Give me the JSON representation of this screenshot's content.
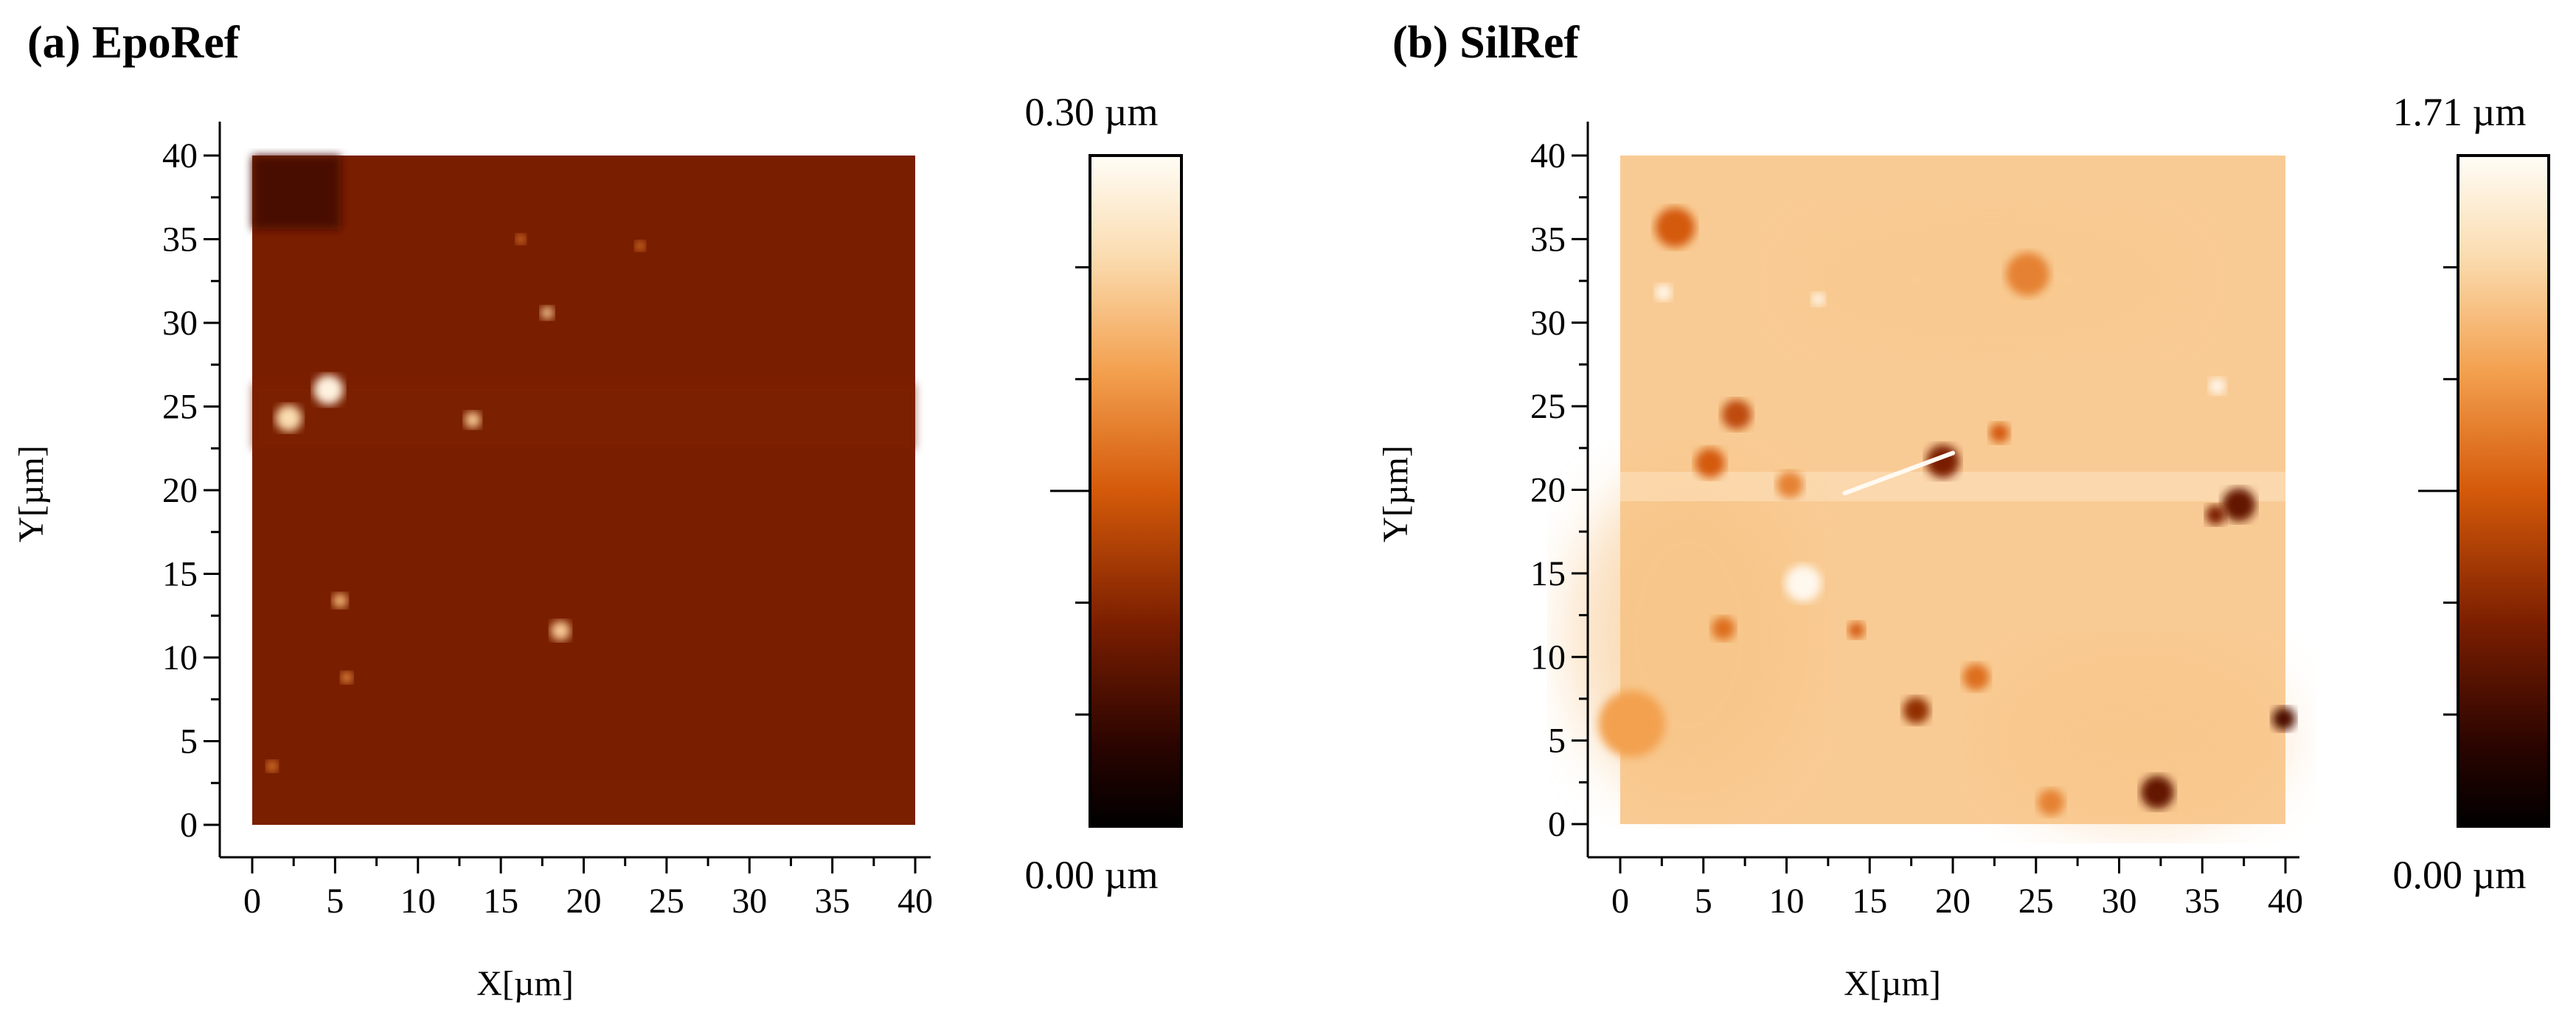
{
  "chart_data": [
    {
      "id": "a",
      "type": "heatmap",
      "title": "(a) EpoRef",
      "xlabel": "X[µm]",
      "ylabel": "Y[µm]",
      "xlim": [
        0,
        40
      ],
      "ylim": [
        0,
        40
      ],
      "x_ticks": [
        "0",
        "5",
        "10",
        "15",
        "20",
        "25",
        "30",
        "35",
        "40"
      ],
      "y_ticks": [
        "0",
        "5",
        "10",
        "15",
        "20",
        "25",
        "30",
        "35",
        "40"
      ],
      "colorbar": {
        "min": 0.0,
        "max": 0.3,
        "unit": "µm",
        "min_label": "0.00 µm",
        "max_label": "0.30 µm"
      },
      "surface": {
        "base_level_fraction": 0.3,
        "description_colors": [
          "#000000",
          "#4a0f00",
          "#a33400",
          "#e8761a",
          "#f7c98a",
          "#fffdf6"
        ]
      },
      "features": [
        {
          "x": 4.6,
          "y": 26.0,
          "r": 0.9,
          "level": 0.95
        },
        {
          "x": 2.2,
          "y": 24.3,
          "r": 0.8,
          "level": 0.85
        },
        {
          "x": 13.3,
          "y": 24.2,
          "r": 0.5,
          "level": 0.8
        },
        {
          "x": 17.8,
          "y": 30.6,
          "r": 0.4,
          "level": 0.8
        },
        {
          "x": 18.6,
          "y": 11.6,
          "r": 0.6,
          "level": 0.8
        },
        {
          "x": 5.3,
          "y": 13.4,
          "r": 0.45,
          "level": 0.75
        },
        {
          "x": 5.7,
          "y": 8.8,
          "r": 0.35,
          "level": 0.65
        },
        {
          "x": 1.2,
          "y": 3.5,
          "r": 0.35,
          "level": 0.6
        },
        {
          "x": 16.2,
          "y": 35.0,
          "r": 0.3,
          "level": 0.6
        },
        {
          "x": 23.4,
          "y": 34.6,
          "r": 0.3,
          "level": 0.6
        }
      ]
    },
    {
      "id": "b",
      "type": "heatmap",
      "title": "(b) SilRef",
      "xlabel": "X[µm]",
      "ylabel": "Y[µm]",
      "xlim": [
        0,
        40
      ],
      "ylim": [
        0,
        40
      ],
      "x_ticks": [
        "0",
        "5",
        "10",
        "15",
        "20",
        "25",
        "30",
        "35",
        "40"
      ],
      "y_ticks": [
        "0",
        "5",
        "10",
        "15",
        "20",
        "25",
        "30",
        "35",
        "40"
      ],
      "colorbar": {
        "min": 0.0,
        "max": 1.71,
        "unit": "µm",
        "min_label": "0.00 µm",
        "max_label": "1.71 µm"
      },
      "surface": {
        "base_level_fraction": 0.8,
        "description_colors": [
          "#000000",
          "#4a0f00",
          "#a33400",
          "#e8761a",
          "#f7c98a",
          "#fffdf6"
        ]
      },
      "features": [
        {
          "x": 3.3,
          "y": 35.7,
          "r": 1.2,
          "level": 0.5
        },
        {
          "x": 24.5,
          "y": 32.9,
          "r": 1.3,
          "level": 0.6
        },
        {
          "x": 19.4,
          "y": 21.7,
          "r": 1.0,
          "level": 0.3
        },
        {
          "x": 37.2,
          "y": 19.1,
          "r": 1.0,
          "level": 0.25
        },
        {
          "x": 35.8,
          "y": 18.5,
          "r": 0.6,
          "level": 0.3
        },
        {
          "x": 32.3,
          "y": 1.9,
          "r": 1.0,
          "level": 0.25
        },
        {
          "x": 39.9,
          "y": 6.3,
          "r": 0.7,
          "level": 0.2
        },
        {
          "x": 17.8,
          "y": 6.8,
          "r": 0.8,
          "level": 0.35
        },
        {
          "x": 7.0,
          "y": 24.5,
          "r": 0.9,
          "level": 0.45
        },
        {
          "x": 5.4,
          "y": 21.6,
          "r": 0.9,
          "level": 0.5
        },
        {
          "x": 21.4,
          "y": 8.8,
          "r": 0.8,
          "level": 0.55
        },
        {
          "x": 6.2,
          "y": 11.7,
          "r": 0.7,
          "level": 0.55
        },
        {
          "x": 10.2,
          "y": 20.3,
          "r": 0.8,
          "level": 0.6
        },
        {
          "x": 14.2,
          "y": 11.6,
          "r": 0.5,
          "level": 0.5
        },
        {
          "x": 22.8,
          "y": 23.4,
          "r": 0.6,
          "level": 0.5
        },
        {
          "x": 25.9,
          "y": 1.3,
          "r": 0.8,
          "level": 0.6
        },
        {
          "x": 0.7,
          "y": 6.0,
          "r": 2.0,
          "level": 0.68
        }
      ],
      "bright_features": [
        {
          "x": 11.0,
          "y": 14.4,
          "r": 1.1
        },
        {
          "x": 11.9,
          "y": 31.4,
          "r": 0.4
        },
        {
          "x": 2.6,
          "y": 31.8,
          "r": 0.5
        },
        {
          "x": 35.9,
          "y": 26.2,
          "r": 0.5
        }
      ],
      "scratch": {
        "x1": 13.5,
        "y1": 19.8,
        "x2": 20.0,
        "y2": 22.2
      }
    }
  ]
}
